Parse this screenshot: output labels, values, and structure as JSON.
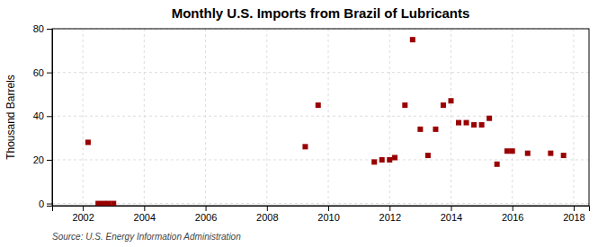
{
  "chart_data": {
    "type": "scatter",
    "title": "Monthly U.S. Imports from Brazil of Lubricants",
    "ylabel": "Thousand Barrels",
    "annotation": "Source: U.S. Energy Information Administration",
    "x": [
      2002.17,
      2002.5,
      2002.67,
      2002.83,
      2003.0,
      2009.25,
      2009.67,
      2011.5,
      2011.75,
      2012.0,
      2012.17,
      2012.5,
      2012.75,
      2013.0,
      2013.25,
      2013.5,
      2013.75,
      2014.0,
      2014.25,
      2014.5,
      2014.75,
      2015.0,
      2015.25,
      2015.5,
      2015.83,
      2016.0,
      2016.5,
      2017.25,
      2017.67
    ],
    "values": [
      28,
      0,
      0,
      0,
      0,
      26,
      45,
      19,
      20,
      20,
      21,
      45,
      75,
      34,
      22,
      34,
      45,
      47,
      37,
      37,
      36,
      36,
      39,
      18,
      24,
      24,
      23,
      23,
      22
    ],
    "color": "#990000",
    "marker": "square",
    "xlim": [
      2001.0,
      2018.5
    ],
    "ylim": [
      -1,
      80
    ],
    "xticks": [
      2002,
      2004,
      2006,
      2008,
      2010,
      2012,
      2014,
      2016,
      2018
    ],
    "yticks": [
      0,
      20,
      40,
      60,
      80
    ],
    "grid": true
  }
}
